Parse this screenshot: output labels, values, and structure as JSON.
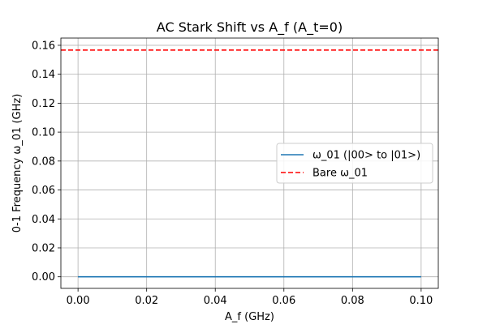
{
  "chart_data": {
    "type": "line",
    "title": "AC Stark Shift vs A_f (A_t=0)",
    "xlabel": "A_f (GHz)",
    "ylabel": "0-1 Frequency ω_01 (GHz)",
    "xlim": [
      -0.005,
      0.105
    ],
    "ylim": [
      -0.008,
      0.165
    ],
    "xticks": [
      0.0,
      0.02,
      0.04,
      0.06,
      0.08,
      0.1
    ],
    "xtick_labels": [
      "0.00",
      "0.02",
      "0.04",
      "0.06",
      "0.08",
      "0.10"
    ],
    "yticks": [
      0.0,
      0.02,
      0.04,
      0.06,
      0.08,
      0.1,
      0.12,
      0.14,
      0.16
    ],
    "ytick_labels": [
      "0.00",
      "0.02",
      "0.04",
      "0.06",
      "0.08",
      "0.10",
      "0.12",
      "0.14",
      "0.16"
    ],
    "grid": true,
    "legend_position": "center-right",
    "series": [
      {
        "name": "ω_01 (|00> to |01>)",
        "color": "#1f77b4",
        "style": "solid",
        "x": [
          0.0,
          0.02,
          0.04,
          0.06,
          0.08,
          0.1
        ],
        "y": [
          0.0,
          0.0,
          0.0,
          0.0,
          0.0,
          0.0
        ]
      }
    ],
    "reference_lines": [
      {
        "name": "Bare ω_01",
        "color": "#ff0000",
        "style": "dashed",
        "y": 0.1567
      }
    ]
  }
}
